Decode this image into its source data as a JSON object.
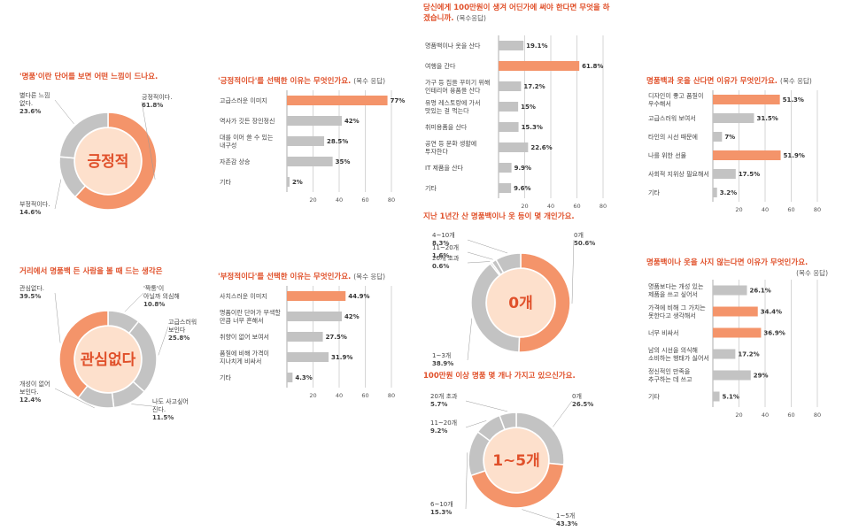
{
  "colors": {
    "accent": "#f4946a",
    "gray": "#c3c3c3",
    "center_fill": "#fde0cc",
    "title_accent": "#e0502a"
  },
  "donuts": [
    {
      "id": "d1",
      "title": "'명품'이란 단어를 보면 어떤 느낌이 드나요.",
      "note": "",
      "center": "긍정적",
      "slices": [
        {
          "label": "긍정적이다.",
          "value": 61.8,
          "value_text": "61.8%",
          "color": "#f4946a"
        },
        {
          "label": "부정적이다.",
          "value": 14.6,
          "value_text": "14.6%",
          "color": "#c3c3c3"
        },
        {
          "label": "별다른 느낌 없다.",
          "value": 23.6,
          "value_text": "23.6%",
          "color": "#c3c3c3"
        }
      ]
    },
    {
      "id": "d2",
      "title": "거리에서 명품백 든 사람을 볼 때 드는 생각은",
      "note": "",
      "center": "관심없다",
      "slices": [
        {
          "label": "'짝퉁'이 아닐까 의심해 본다.",
          "value": 10.8,
          "value_text": "10.8%",
          "color": "#c3c3c3"
        },
        {
          "label": "고급스러워 보인다",
          "value": 25.8,
          "value_text": "25.8%",
          "color": "#c3c3c3"
        },
        {
          "label": "나도 사고싶어 진다.",
          "value": 11.5,
          "value_text": "11.5%",
          "color": "#c3c3c3"
        },
        {
          "label": "개성이 없어 보인다.",
          "value": 12.4,
          "value_text": "12.4%",
          "color": "#c3c3c3"
        },
        {
          "label": "관심없다.",
          "value": 39.5,
          "value_text": "39.5%",
          "color": "#f4946a"
        }
      ]
    },
    {
      "id": "d3",
      "title": "지난 1년간 산 명품백이나 옷 등이 몇 개인가요.",
      "note": "",
      "center": "0개",
      "slices": [
        {
          "label": "0개",
          "value": 50.6,
          "value_text": "50.6%",
          "color": "#f4946a"
        },
        {
          "label": "1~3개",
          "value": 38.9,
          "value_text": "38.9%",
          "color": "#c3c3c3"
        },
        {
          "label": "20개 초과",
          "value": 0.6,
          "value_text": "0.6%",
          "color": "#c3c3c3"
        },
        {
          "label": "11~20개",
          "value": 1.6,
          "value_text": "1.6%",
          "color": "#c3c3c3"
        },
        {
          "label": "4~10개",
          "value": 8.3,
          "value_text": "8.3%",
          "color": "#c3c3c3"
        }
      ]
    },
    {
      "id": "d4",
      "title": "100만원 이상 명품 몇 개나 가지고 있으신가요.",
      "note": "",
      "center": "1~5개",
      "slices": [
        {
          "label": "0개",
          "value": 26.5,
          "value_text": "26.5%",
          "color": "#c3c3c3"
        },
        {
          "label": "1~5개",
          "value": 43.3,
          "value_text": "43.3%",
          "color": "#f4946a"
        },
        {
          "label": "6~10개",
          "value": 15.3,
          "value_text": "15.3%",
          "color": "#c3c3c3"
        },
        {
          "label": "11~20개",
          "value": 9.2,
          "value_text": "9.2%",
          "color": "#c3c3c3"
        },
        {
          "label": "20개 초과",
          "value": 5.7,
          "value_text": "5.7%",
          "color": "#c3c3c3"
        }
      ]
    }
  ],
  "bars": [
    {
      "id": "b1",
      "title": "'긍정적이다'를 선택한 이유는 무엇인가요.",
      "note": "(복수 응답)",
      "xmax": 80,
      "ticks": [
        20,
        40,
        60,
        80
      ],
      "items": [
        {
          "label": "고급스러운 이미지",
          "value": 77,
          "value_text": "77%",
          "highlight": true
        },
        {
          "label": "역사가 깃든 장인정신",
          "value": 42,
          "value_text": "42%",
          "highlight": false
        },
        {
          "label": "대를 이어 쓸 수 있는 내구성",
          "value": 28.5,
          "value_text": "28.5%",
          "highlight": false
        },
        {
          "label": "자존감 상승",
          "value": 35,
          "value_text": "35%",
          "highlight": false
        },
        {
          "label": "기타",
          "value": 2,
          "value_text": "2%",
          "highlight": false
        }
      ]
    },
    {
      "id": "b2",
      "title": "'부정적이다'를 선택한 이유는 무엇인가요.",
      "note": "(복수 응답)",
      "xmax": 80,
      "ticks": [
        20,
        40,
        60,
        80
      ],
      "items": [
        {
          "label": "사치스러운 이미지",
          "value": 44.9,
          "value_text": "44.9%",
          "highlight": true
        },
        {
          "label": "명품이란 단어가 무색할 만큼 너무 흔해서",
          "value": 42,
          "value_text": "42%",
          "highlight": false
        },
        {
          "label": "취향이 없어 보여서",
          "value": 27.5,
          "value_text": "27.5%",
          "highlight": false
        },
        {
          "label": "품질에 비해 가격이 지나치게 비싸서",
          "value": 31.9,
          "value_text": "31.9%",
          "highlight": false
        },
        {
          "label": "기타",
          "value": 4.3,
          "value_text": "4.3%",
          "highlight": false
        }
      ]
    },
    {
      "id": "b3",
      "title": "당신에게 100만원이 생겨 어딘가에 써야 한다면 무엇을 하겠습니까.",
      "note": "(복수응답)",
      "xmax": 80,
      "ticks": [
        20,
        40,
        60,
        80
      ],
      "items": [
        {
          "label": "명품백이나 옷을 산다",
          "value": 19.1,
          "value_text": "19.1%",
          "highlight": false
        },
        {
          "label": "여행을 간다",
          "value": 61.8,
          "value_text": "61.8%",
          "highlight": true
        },
        {
          "label": "가구 등 집을 꾸미기 위해 인테리어 용품을 산다",
          "value": 17.2,
          "value_text": "17.2%",
          "highlight": false
        },
        {
          "label": "유명 레스토랑에 가서 맛있는 걸 먹는다",
          "value": 15,
          "value_text": "15%",
          "highlight": false
        },
        {
          "label": "취미용품을 산다",
          "value": 15.3,
          "value_text": "15.3%",
          "highlight": false
        },
        {
          "label": "공연 등 문화 생활에 투자한다",
          "value": 22.6,
          "value_text": "22.6%",
          "highlight": false
        },
        {
          "label": "IT 제품을 산다",
          "value": 9.9,
          "value_text": "9.9%",
          "highlight": false
        },
        {
          "label": "기타",
          "value": 9.6,
          "value_text": "9.6%",
          "highlight": false
        }
      ]
    },
    {
      "id": "b4",
      "title": "명품백과 옷을 산다면 이유가 무엇인가요.",
      "note": "(복수 응답)",
      "xmax": 80,
      "ticks": [
        20,
        40,
        60,
        80
      ],
      "items": [
        {
          "label": "디자인이 좋고 품질이 우수해서",
          "value": 51.3,
          "value_text": "51.3%",
          "highlight": true
        },
        {
          "label": "고급스러워 보여서",
          "value": 31.5,
          "value_text": "31.5%",
          "highlight": false
        },
        {
          "label": "타인의 시선 때문에",
          "value": 7,
          "value_text": "7%",
          "highlight": false
        },
        {
          "label": "나를 위한 선물",
          "value": 51.9,
          "value_text": "51.9%",
          "highlight": true
        },
        {
          "label": "사회적 지위상 필요해서",
          "value": 17.5,
          "value_text": "17.5%",
          "highlight": false
        },
        {
          "label": "기타",
          "value": 3.2,
          "value_text": "3.2%",
          "highlight": false
        }
      ]
    },
    {
      "id": "b5",
      "title": "명품백이나 옷을 사지 않는다면 이유가 무엇인가요.",
      "note": "(복수 응답)",
      "xmax": 80,
      "ticks": [
        20,
        40,
        60,
        80
      ],
      "items": [
        {
          "label": "명품보다는 개성 있는 제품을 쓰고 싶어서",
          "value": 26.1,
          "value_text": "26.1%",
          "highlight": false
        },
        {
          "label": "가격에 비해 그 가치는 못한다고 생각해서",
          "value": 34.4,
          "value_text": "34.4%",
          "highlight": true
        },
        {
          "label": "너무 비싸서",
          "value": 36.9,
          "value_text": "36.9%",
          "highlight": true
        },
        {
          "label": "남의 시선을 의식해 소비하는 행태가 싫어서",
          "value": 17.2,
          "value_text": "17.2%",
          "highlight": false
        },
        {
          "label": "정신적인 만족을 추구하는 데 쓰고 싶어서",
          "value": 29,
          "value_text": "29%",
          "highlight": false
        },
        {
          "label": "기타",
          "value": 5.1,
          "value_text": "5.1%",
          "highlight": false
        }
      ]
    }
  ],
  "chart_data": [
    {
      "type": "pie",
      "title": "'명품'이란 단어를 보면 어떤 느낌이 드나요.",
      "categories": [
        "긍정적이다.",
        "부정적이다.",
        "별다른 느낌 없다."
      ],
      "values": [
        61.8,
        14.6,
        23.6
      ]
    },
    {
      "type": "bar",
      "title": "'긍정적이다'를 선택한 이유는 무엇인가요.",
      "categories": [
        "고급스러운 이미지",
        "역사가 깃든 장인정신",
        "대를 이어 쓸 수 있는 내구성",
        "자존감 상승",
        "기타"
      ],
      "values": [
        77,
        42,
        28.5,
        35,
        2
      ],
      "xlim": [
        0,
        80
      ]
    },
    {
      "type": "pie",
      "title": "거리에서 명품백 든 사람을 볼 때 드는 생각은",
      "categories": [
        "'짝퉁'이 아닐까 의심해 본다.",
        "고급스러워 보인다",
        "나도 사고싶어 진다.",
        "개성이 없어 보인다.",
        "관심없다."
      ],
      "values": [
        10.8,
        25.8,
        11.5,
        12.4,
        39.5
      ]
    },
    {
      "type": "bar",
      "title": "'부정적이다'를 선택한 이유는 무엇인가요.",
      "categories": [
        "사치스러운 이미지",
        "명품이란 단어가 무색할 만큼 너무 흔해서",
        "취향이 없어 보여서",
        "품질에 비해 가격이 지나치게 비싸서",
        "기타"
      ],
      "values": [
        44.9,
        42,
        27.5,
        31.9,
        4.3
      ],
      "xlim": [
        0,
        80
      ]
    },
    {
      "type": "bar",
      "title": "당신에게 100만원이 생겨 어딘가에 써야 한다면 무엇을 하겠습니까.",
      "categories": [
        "명품백이나 옷을 산다",
        "여행을 간다",
        "가구 등 집을 꾸미기 위해 인테리어 용품을 산다",
        "유명 레스토랑에 가서 맛있는 걸 먹는다",
        "취미용품을 산다",
        "공연 등 문화 생활에 투자한다",
        "IT 제품을 산다",
        "기타"
      ],
      "values": [
        19.1,
        61.8,
        17.2,
        15,
        15.3,
        22.6,
        9.9,
        9.6
      ],
      "xlim": [
        0,
        80
      ]
    },
    {
      "type": "pie",
      "title": "지난 1년간 산 명품백이나 옷 등이 몇 개인가요.",
      "categories": [
        "0개",
        "1~3개",
        "20개 초과",
        "11~20개",
        "4~10개"
      ],
      "values": [
        50.6,
        38.9,
        0.6,
        1.6,
        8.3
      ]
    },
    {
      "type": "pie",
      "title": "100만원 이상 명품 몇 개나 가지고 있으신가요.",
      "categories": [
        "0개",
        "1~5개",
        "6~10개",
        "11~20개",
        "20개 초과"
      ],
      "values": [
        26.5,
        43.3,
        15.3,
        9.2,
        5.7
      ]
    },
    {
      "type": "bar",
      "title": "명품백과 옷을 산다면 이유가 무엇인가요.",
      "categories": [
        "디자인이 좋고 품질이 우수해서",
        "고급스러워 보여서",
        "타인의 시선 때문에",
        "나를 위한 선물",
        "사회적 지위상 필요해서",
        "기타"
      ],
      "values": [
        51.3,
        31.5,
        7,
        51.9,
        17.5,
        3.2
      ],
      "xlim": [
        0,
        80
      ]
    },
    {
      "type": "bar",
      "title": "명품백이나 옷을 사지 않는다면 이유가 무엇인가요.",
      "categories": [
        "명품보다는 개성 있는 제품을 쓰고 싶어서",
        "가격에 비해 그 가치는 못한다고 생각해서",
        "너무 비싸서",
        "남의 시선을 의식해 소비하는 행태가 싫어서",
        "정신적인 만족을 추구하는 데 쓰고 싶어서",
        "기타"
      ],
      "values": [
        26.1,
        34.4,
        36.9,
        17.2,
        29,
        5.1
      ],
      "xlim": [
        0,
        80
      ]
    }
  ]
}
